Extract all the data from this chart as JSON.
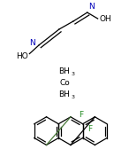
{
  "fig_width": 1.46,
  "fig_height": 1.77,
  "dpi": 100,
  "bg_color": "#ffffff",
  "line_color": "#000000",
  "bond_color_biphenyl": "#4a7a3a",
  "atom_colors": {
    "N": "#0000bb",
    "O": "#cc2200",
    "F": "#228B22",
    "Co": "#000000",
    "BH3": "#000000",
    "HO": "#000000",
    "OH": "#000000"
  },
  "font_size_main": 6.5,
  "font_size_sub": 4.5,
  "lw": 0.9
}
